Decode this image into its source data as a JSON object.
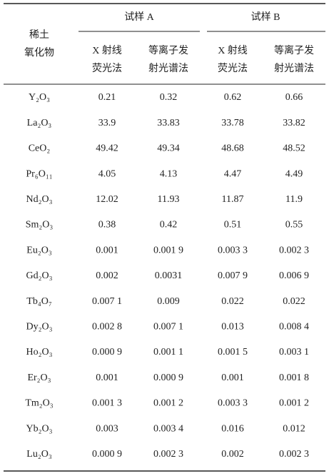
{
  "table": {
    "group_a": "试样 A",
    "group_b": "试样 B",
    "row_header": [
      "稀土",
      "氧化物"
    ],
    "columns": [
      [
        "X 射线",
        "荧光法"
      ],
      [
        "等离子发",
        "射光谱法"
      ],
      [
        "X 射线",
        "荧光法"
      ],
      [
        "等离子发",
        "射光谱法"
      ]
    ],
    "rows": [
      [
        "Y₂O₃",
        "0.21",
        "0.32",
        "0.62",
        "0.66"
      ],
      [
        "La₂O₃",
        "33.9",
        "33.83",
        "33.78",
        "33.82"
      ],
      [
        "CeO₂",
        "49.42",
        "49.34",
        "48.68",
        "48.52"
      ],
      [
        "Pr₆O₁₁",
        "4.05",
        "4.13",
        "4.47",
        "4.49"
      ],
      [
        "Nd₂O₃",
        "12.02",
        "11.93",
        "11.87",
        "11.9"
      ],
      [
        "Sm₂O₃",
        "0.38",
        "0.42",
        "0.51",
        "0.55"
      ],
      [
        "Eu₂O₃",
        "0.001",
        "0.001 9",
        "0.003 3",
        "0.002 3"
      ],
      [
        "Gd₂O₃",
        "0.002",
        "0.0031",
        "0.007 9",
        "0.006 9"
      ],
      [
        "Tb₄O₇",
        "0.007 1",
        "0.009",
        "0.022",
        "0.022"
      ],
      [
        "Dy₂O₃",
        "0.002 8",
        "0.007 1",
        "0.013",
        "0.008 4"
      ],
      [
        "Ho₂O₃",
        "0.000 9",
        "0.001 1",
        "0.001 5",
        "0.003 1"
      ],
      [
        "Er₂O₃",
        "0.001",
        "0.000 9",
        "0.001",
        "0.001 8"
      ],
      [
        "Tm₂O₃",
        "0.001 3",
        "0.001 2",
        "0.003 3",
        "0.001 2"
      ],
      [
        "Yb₂O₃",
        "0.003",
        "0.003 4",
        "0.016",
        "0.012"
      ],
      [
        "Lu₂O₃",
        "0.000 9",
        "0.002 3",
        "0.002",
        "0.002 3"
      ]
    ]
  }
}
